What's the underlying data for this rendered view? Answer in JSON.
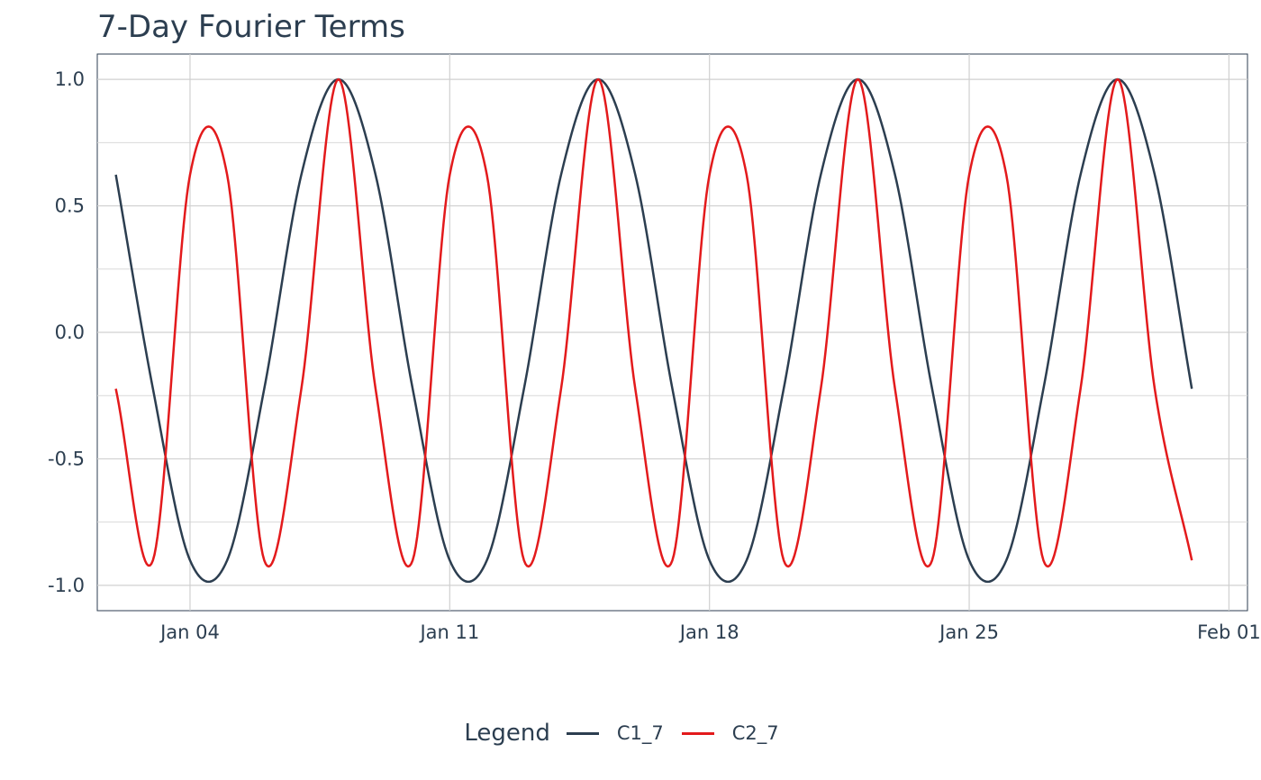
{
  "chart_data": {
    "type": "line",
    "title": "7-Day Fourier Terms",
    "xlabel": "",
    "ylabel": "",
    "x_axis": {
      "type": "date",
      "range": [
        "2023-01-01T12:00",
        "2023-02-01T12:00"
      ],
      "ticks": [
        {
          "date": "2023-01-04",
          "label": "Jan 04"
        },
        {
          "date": "2023-01-11",
          "label": "Jan 11"
        },
        {
          "date": "2023-01-18",
          "label": "Jan 18"
        },
        {
          "date": "2023-01-25",
          "label": "Jan 25"
        },
        {
          "date": "2023-02-01",
          "label": "Feb 01"
        }
      ]
    },
    "y_axis": {
      "range": [
        -1.1,
        1.1
      ],
      "ticks": [
        {
          "value": 1.0,
          "label": "1.0"
        },
        {
          "value": 0.5,
          "label": "0.5"
        },
        {
          "value": 0.0,
          "label": "0.0"
        },
        {
          "value": -0.5,
          "label": "-0.5"
        },
        {
          "value": -1.0,
          "label": "-1.0"
        }
      ],
      "minor_gridlines": [
        0.75,
        0.25,
        -0.25,
        -0.75
      ]
    },
    "grid": true,
    "legend": {
      "title": "Legend",
      "position": "bottom"
    },
    "series": [
      {
        "name": "C1_7",
        "color": "#2c3e50",
        "x": [
          "2023-01-02",
          "2023-01-03",
          "2023-01-04",
          "2023-01-05",
          "2023-01-06",
          "2023-01-07",
          "2023-01-08",
          "2023-01-09",
          "2023-01-10",
          "2023-01-11",
          "2023-01-12",
          "2023-01-13",
          "2023-01-14",
          "2023-01-15",
          "2023-01-16",
          "2023-01-17",
          "2023-01-18",
          "2023-01-19",
          "2023-01-20",
          "2023-01-21",
          "2023-01-22",
          "2023-01-23",
          "2023-01-24",
          "2023-01-25",
          "2023-01-26",
          "2023-01-27",
          "2023-01-28",
          "2023-01-29",
          "2023-01-30",
          "2023-01-31"
        ],
        "y": [
          0.623,
          -0.223,
          -0.901,
          -0.901,
          -0.223,
          0.623,
          1.0,
          0.623,
          -0.223,
          -0.901,
          -0.901,
          -0.223,
          0.623,
          1.0,
          0.623,
          -0.223,
          -0.901,
          -0.901,
          -0.223,
          0.623,
          1.0,
          0.623,
          -0.223,
          -0.901,
          -0.901,
          -0.223,
          0.623,
          1.0,
          0.623,
          -0.223
        ]
      },
      {
        "name": "C2_7",
        "color": "#e31a1c",
        "x": [
          "2023-01-02",
          "2023-01-03",
          "2023-01-04",
          "2023-01-05",
          "2023-01-06",
          "2023-01-07",
          "2023-01-08",
          "2023-01-09",
          "2023-01-10",
          "2023-01-11",
          "2023-01-12",
          "2023-01-13",
          "2023-01-14",
          "2023-01-15",
          "2023-01-16",
          "2023-01-17",
          "2023-01-18",
          "2023-01-19",
          "2023-01-20",
          "2023-01-21",
          "2023-01-22",
          "2023-01-23",
          "2023-01-24",
          "2023-01-25",
          "2023-01-26",
          "2023-01-27",
          "2023-01-28",
          "2023-01-29",
          "2023-01-30",
          "2023-01-31"
        ],
        "y": [
          -0.223,
          -0.901,
          0.623,
          0.623,
          -0.901,
          -0.223,
          1.0,
          -0.223,
          -0.901,
          0.623,
          0.623,
          -0.901,
          -0.223,
          1.0,
          -0.223,
          -0.901,
          0.623,
          0.623,
          -0.901,
          -0.223,
          1.0,
          -0.223,
          -0.901,
          0.623,
          0.623,
          -0.901,
          -0.223,
          1.0,
          -0.223,
          -0.901
        ]
      }
    ]
  }
}
